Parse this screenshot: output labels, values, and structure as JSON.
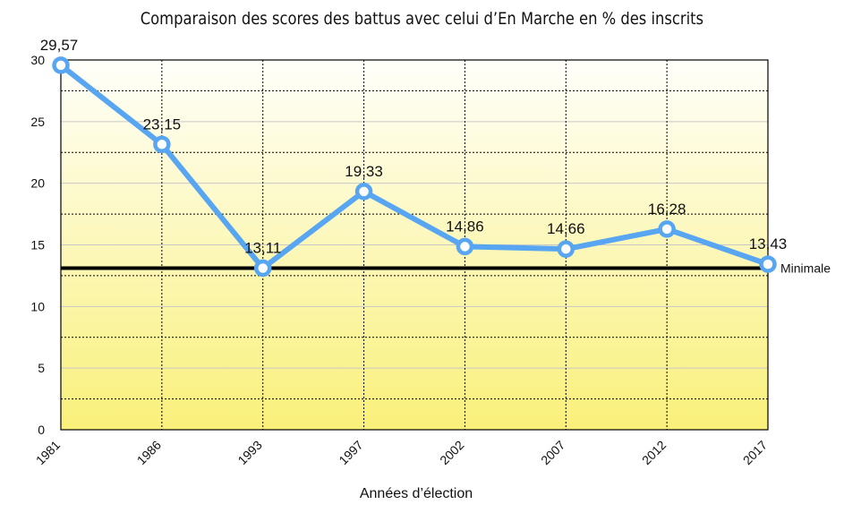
{
  "chart_data": {
    "type": "line",
    "title": "Comparaison des scores des battus avec celui d’En Marche en % des inscrits",
    "xlabel": "Années d’élection",
    "ylabel": "",
    "categories": [
      "1981",
      "1986",
      "1993",
      "1997",
      "2002",
      "2007",
      "2012",
      "2017"
    ],
    "series": [
      {
        "values": [
          29.57,
          23.15,
          13.11,
          19.33,
          14.86,
          14.66,
          16.28,
          13.43
        ],
        "labels": [
          "29,57",
          "23,15",
          "13,11",
          "19,33",
          "14,86",
          "14,66",
          "16,28",
          "13,43"
        ],
        "color": "#58a6f2"
      }
    ],
    "reference_line": {
      "label": "Minimale",
      "value": 13.11,
      "color": "#000000"
    },
    "ylim": [
      0,
      30
    ],
    "yticks": [
      0,
      5,
      10,
      15,
      20,
      25,
      30
    ],
    "grid": true,
    "background_gradient": [
      "#fffffb",
      "#f9f07a"
    ]
  }
}
